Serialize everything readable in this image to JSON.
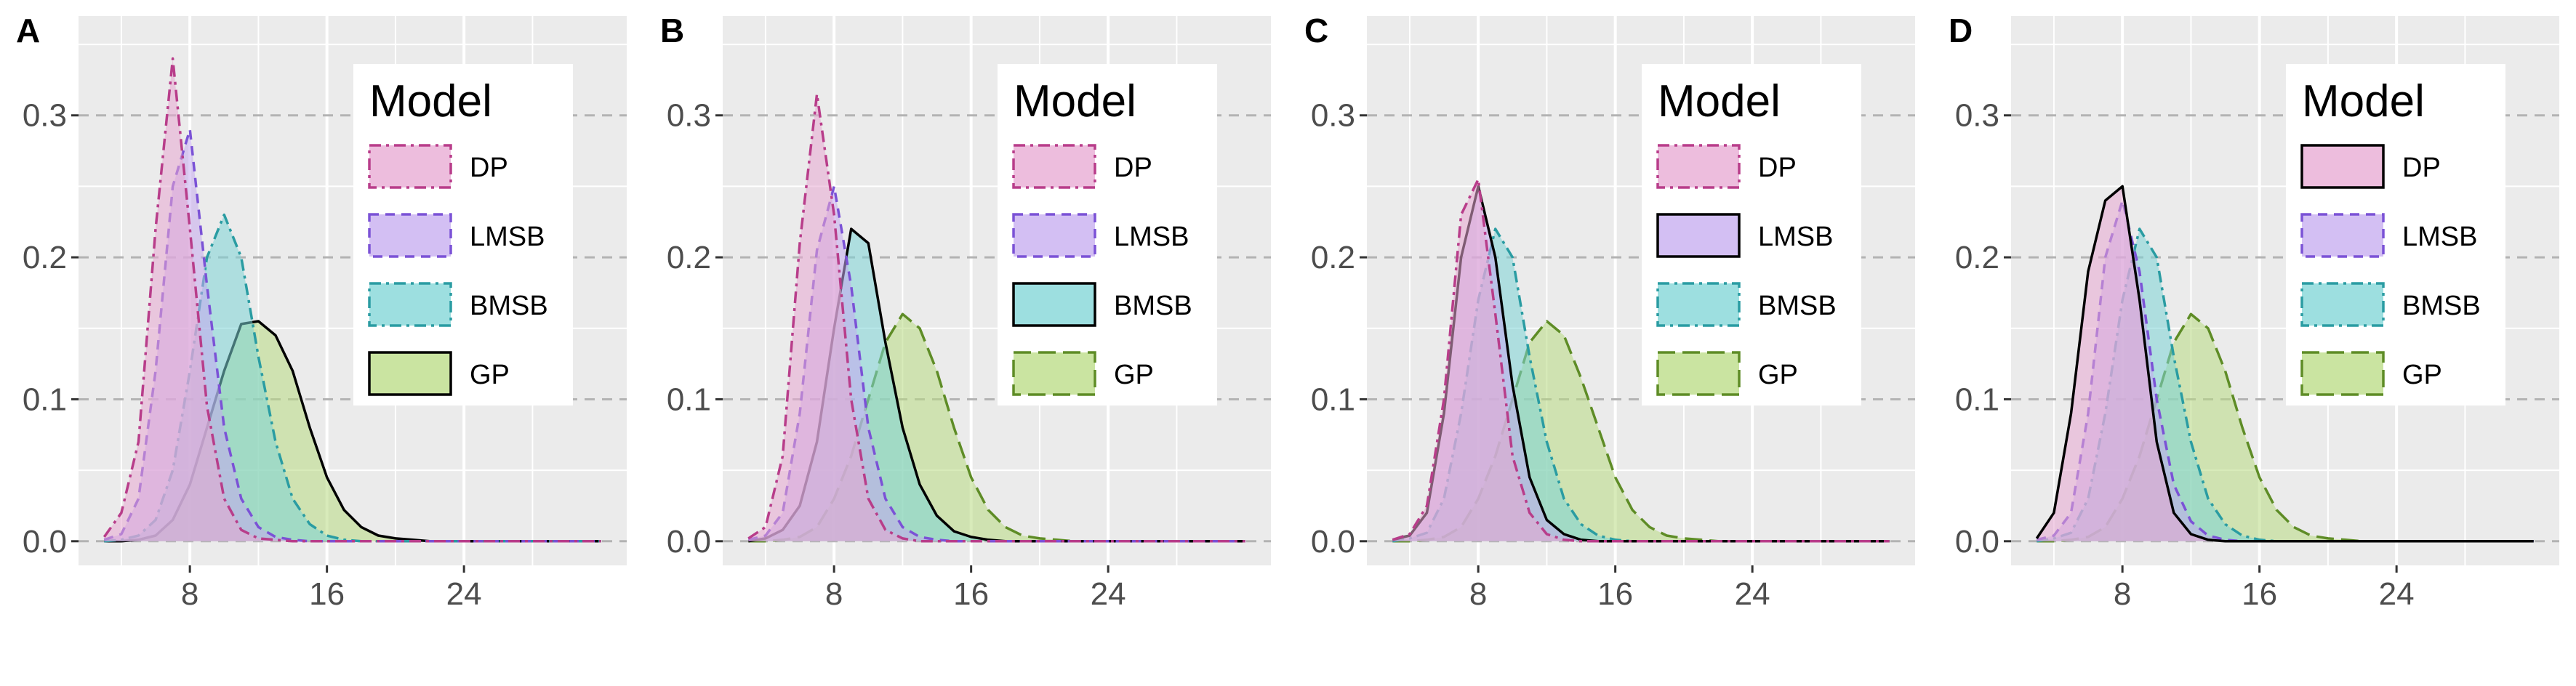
{
  "legend_title": "Model",
  "series_style": {
    "DP": {
      "fill": "#e7a7d2",
      "line": "#b83d8a",
      "dash": "dashdot"
    },
    "LMSB": {
      "fill": "#c4a9ef",
      "line": "#7b52d6",
      "dash": "dashed"
    },
    "BMSB": {
      "fill": "#7cd4d6",
      "line": "#2a9ca2",
      "dash": "dashdot"
    },
    "GP": {
      "fill": "#b8db82",
      "line": "#5e8c26",
      "dash": "longdash"
    }
  },
  "chart_data": [
    {
      "type": "area",
      "panel": "A",
      "x": [
        3,
        4,
        5,
        6,
        7,
        8,
        9,
        10,
        11,
        12,
        13,
        14,
        15,
        16,
        17,
        18,
        19,
        20,
        21,
        22,
        23,
        24,
        25,
        26,
        27,
        28,
        29,
        30,
        31,
        32
      ],
      "xticks": [
        8,
        16,
        24
      ],
      "yticks": [
        0.0,
        0.1,
        0.2,
        0.3
      ],
      "xlim": [
        1.5,
        33.5
      ],
      "ylim": [
        -0.017,
        0.37
      ],
      "legend_order": [
        "DP",
        "LMSB",
        "BMSB",
        "GP"
      ],
      "solid_series": "GP",
      "series": [
        {
          "name": "DP",
          "values": [
            0.003,
            0.02,
            0.07,
            0.22,
            0.34,
            0.22,
            0.095,
            0.03,
            0.008,
            0.002,
            0.001,
            0,
            0,
            0,
            0,
            0,
            0,
            0,
            0,
            0,
            0,
            0,
            0,
            0,
            0,
            0,
            0,
            0,
            0,
            0
          ]
        },
        {
          "name": "LMSB",
          "values": [
            0.001,
            0.005,
            0.03,
            0.12,
            0.25,
            0.29,
            0.18,
            0.08,
            0.03,
            0.01,
            0.003,
            0.001,
            0,
            0,
            0,
            0,
            0,
            0,
            0,
            0,
            0,
            0,
            0,
            0,
            0,
            0,
            0,
            0,
            0,
            0
          ]
        },
        {
          "name": "BMSB",
          "values": [
            0,
            0.001,
            0.004,
            0.015,
            0.05,
            0.12,
            0.2,
            0.23,
            0.2,
            0.13,
            0.07,
            0.03,
            0.012,
            0.004,
            0.001,
            0,
            0,
            0,
            0,
            0,
            0,
            0,
            0,
            0,
            0,
            0,
            0,
            0,
            0,
            0
          ]
        },
        {
          "name": "GP",
          "values": [
            0,
            0,
            0.001,
            0.004,
            0.015,
            0.04,
            0.08,
            0.12,
            0.153,
            0.155,
            0.145,
            0.12,
            0.08,
            0.045,
            0.022,
            0.01,
            0.004,
            0.002,
            0.001,
            0,
            0,
            0,
            0,
            0,
            0,
            0,
            0,
            0,
            0,
            0
          ]
        }
      ]
    },
    {
      "type": "area",
      "panel": "B",
      "x": [
        3,
        4,
        5,
        6,
        7,
        8,
        9,
        10,
        11,
        12,
        13,
        14,
        15,
        16,
        17,
        18,
        19,
        20,
        21,
        22,
        23,
        24,
        25,
        26,
        27,
        28,
        29,
        30,
        31,
        32
      ],
      "xticks": [
        8,
        16,
        24
      ],
      "yticks": [
        0.0,
        0.1,
        0.2,
        0.3
      ],
      "xlim": [
        1.5,
        33.5
      ],
      "ylim": [
        -0.017,
        0.37
      ],
      "legend_order": [
        "DP",
        "LMSB",
        "BMSB",
        "GP"
      ],
      "solid_series": "BMSB",
      "series": [
        {
          "name": "DP",
          "values": [
            0.002,
            0.01,
            0.06,
            0.21,
            0.315,
            0.23,
            0.1,
            0.03,
            0.008,
            0.002,
            0,
            0,
            0,
            0,
            0,
            0,
            0,
            0,
            0,
            0,
            0,
            0,
            0,
            0,
            0,
            0,
            0,
            0,
            0,
            0
          ]
        },
        {
          "name": "LMSB",
          "values": [
            0.001,
            0.004,
            0.02,
            0.09,
            0.205,
            0.25,
            0.18,
            0.08,
            0.03,
            0.01,
            0.003,
            0.001,
            0,
            0,
            0,
            0,
            0,
            0,
            0,
            0,
            0,
            0,
            0,
            0,
            0,
            0,
            0,
            0,
            0,
            0
          ]
        },
        {
          "name": "BMSB",
          "values": [
            0,
            0.002,
            0.008,
            0.025,
            0.07,
            0.15,
            0.22,
            0.21,
            0.14,
            0.08,
            0.04,
            0.018,
            0.007,
            0.003,
            0.001,
            0,
            0,
            0,
            0,
            0,
            0,
            0,
            0,
            0,
            0,
            0,
            0,
            0,
            0,
            0
          ]
        },
        {
          "name": "GP",
          "values": [
            0,
            0,
            0.001,
            0.003,
            0.01,
            0.03,
            0.06,
            0.1,
            0.14,
            0.16,
            0.15,
            0.12,
            0.08,
            0.045,
            0.022,
            0.01,
            0.004,
            0.002,
            0.001,
            0,
            0,
            0,
            0,
            0,
            0,
            0,
            0,
            0,
            0,
            0
          ]
        }
      ]
    },
    {
      "type": "area",
      "panel": "C",
      "x": [
        3,
        4,
        5,
        6,
        7,
        8,
        9,
        10,
        11,
        12,
        13,
        14,
        15,
        16,
        17,
        18,
        19,
        20,
        21,
        22,
        23,
        24,
        25,
        26,
        27,
        28,
        29,
        30,
        31,
        32
      ],
      "xticks": [
        8,
        16,
        24
      ],
      "yticks": [
        0.0,
        0.1,
        0.2,
        0.3
      ],
      "xlim": [
        1.5,
        33.5
      ],
      "ylim": [
        -0.017,
        0.37
      ],
      "legend_order": [
        "DP",
        "LMSB",
        "BMSB",
        "GP"
      ],
      "solid_series": "LMSB",
      "series": [
        {
          "name": "DP",
          "values": [
            0.001,
            0.005,
            0.025,
            0.1,
            0.23,
            0.255,
            0.16,
            0.06,
            0.02,
            0.005,
            0.001,
            0,
            0,
            0,
            0,
            0,
            0,
            0,
            0,
            0,
            0,
            0,
            0,
            0,
            0,
            0,
            0,
            0,
            0,
            0
          ]
        },
        {
          "name": "LMSB",
          "values": [
            0.001,
            0.004,
            0.02,
            0.09,
            0.2,
            0.25,
            0.2,
            0.11,
            0.045,
            0.015,
            0.005,
            0.001,
            0,
            0,
            0,
            0,
            0,
            0,
            0,
            0,
            0,
            0,
            0,
            0,
            0,
            0,
            0,
            0,
            0,
            0
          ]
        },
        {
          "name": "BMSB",
          "values": [
            0,
            0.002,
            0.006,
            0.03,
            0.09,
            0.17,
            0.22,
            0.2,
            0.13,
            0.07,
            0.03,
            0.012,
            0.004,
            0.001,
            0,
            0,
            0,
            0,
            0,
            0,
            0,
            0,
            0,
            0,
            0,
            0,
            0,
            0,
            0,
            0
          ]
        },
        {
          "name": "GP",
          "values": [
            0,
            0,
            0.001,
            0.003,
            0.01,
            0.03,
            0.06,
            0.1,
            0.14,
            0.155,
            0.145,
            0.115,
            0.08,
            0.045,
            0.022,
            0.01,
            0.004,
            0.002,
            0.001,
            0,
            0,
            0,
            0,
            0,
            0,
            0,
            0,
            0,
            0,
            0
          ]
        }
      ]
    },
    {
      "type": "area",
      "panel": "D",
      "x": [
        3,
        4,
        5,
        6,
        7,
        8,
        9,
        10,
        11,
        12,
        13,
        14,
        15,
        16,
        17,
        18,
        19,
        20,
        21,
        22,
        23,
        24,
        25,
        26,
        27,
        28,
        29,
        30,
        31,
        32
      ],
      "xticks": [
        8,
        16,
        24
      ],
      "yticks": [
        0.0,
        0.1,
        0.2,
        0.3
      ],
      "xlim": [
        1.5,
        33.5
      ],
      "ylim": [
        -0.017,
        0.37
      ],
      "legend_order": [
        "DP",
        "LMSB",
        "BMSB",
        "GP"
      ],
      "solid_series": "DP",
      "series": [
        {
          "name": "DP",
          "values": [
            0.002,
            0.02,
            0.09,
            0.19,
            0.24,
            0.25,
            0.17,
            0.07,
            0.02,
            0.005,
            0.001,
            0,
            0,
            0,
            0,
            0,
            0,
            0,
            0,
            0,
            0,
            0,
            0,
            0,
            0,
            0,
            0,
            0,
            0,
            0
          ]
        },
        {
          "name": "LMSB",
          "values": [
            0.001,
            0.004,
            0.02,
            0.09,
            0.2,
            0.24,
            0.19,
            0.1,
            0.04,
            0.014,
            0.004,
            0.001,
            0,
            0,
            0,
            0,
            0,
            0,
            0,
            0,
            0,
            0,
            0,
            0,
            0,
            0,
            0,
            0,
            0,
            0
          ]
        },
        {
          "name": "BMSB",
          "values": [
            0,
            0.002,
            0.006,
            0.03,
            0.09,
            0.17,
            0.22,
            0.2,
            0.13,
            0.07,
            0.03,
            0.012,
            0.004,
            0.001,
            0,
            0,
            0,
            0,
            0,
            0,
            0,
            0,
            0,
            0,
            0,
            0,
            0,
            0,
            0,
            0
          ]
        },
        {
          "name": "GP",
          "values": [
            0,
            0,
            0.001,
            0.003,
            0.01,
            0.03,
            0.06,
            0.1,
            0.14,
            0.16,
            0.15,
            0.12,
            0.08,
            0.045,
            0.022,
            0.01,
            0.004,
            0.002,
            0.001,
            0,
            0,
            0,
            0,
            0,
            0,
            0,
            0,
            0,
            0,
            0
          ]
        }
      ]
    }
  ]
}
